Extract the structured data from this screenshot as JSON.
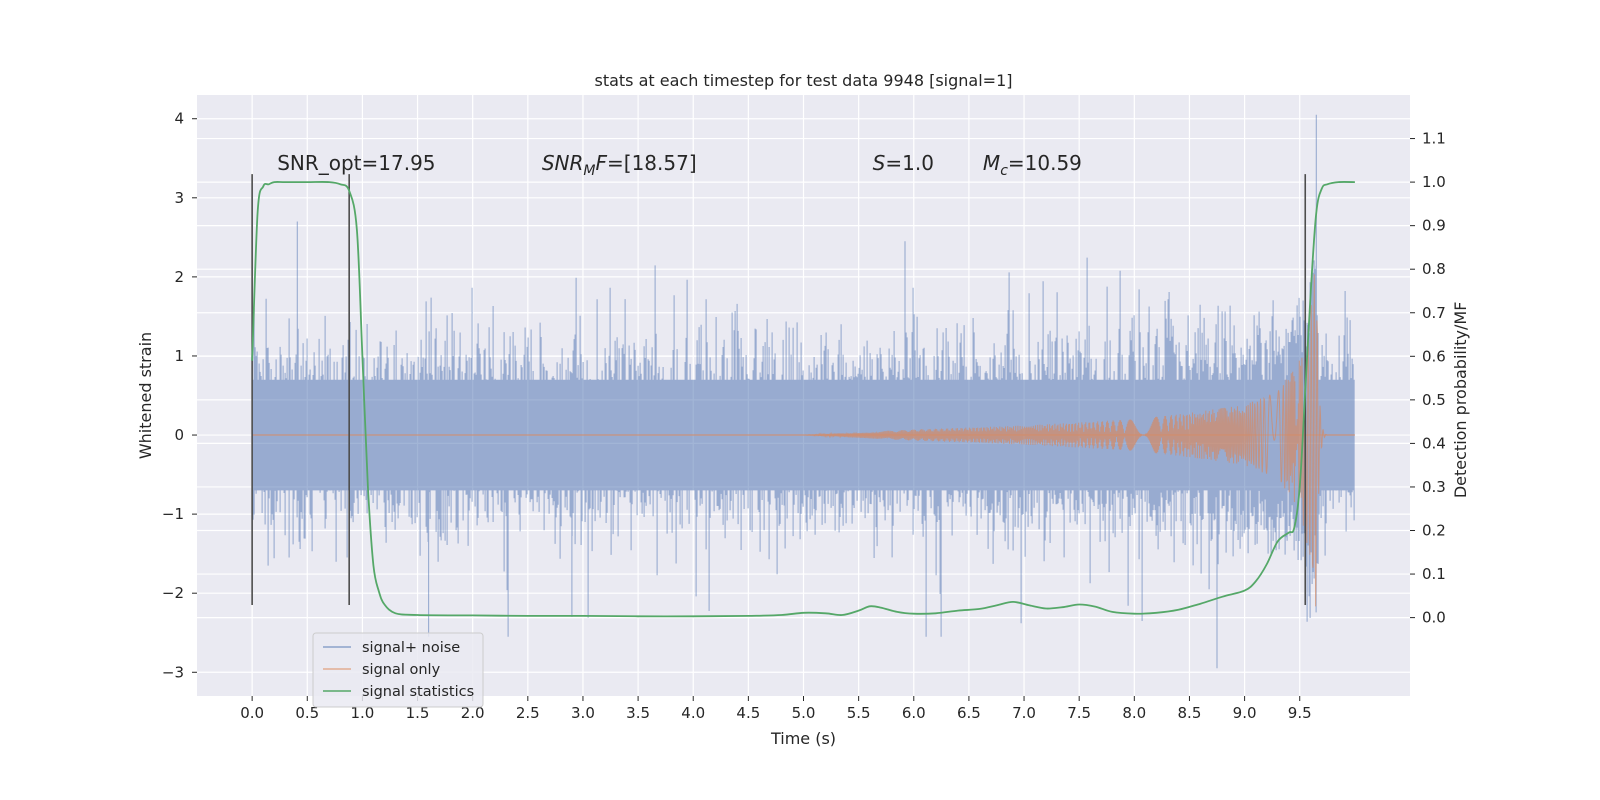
{
  "chart_data": {
    "type": "line",
    "title": "stats at each timestep for test data 9948 [signal=1]",
    "xlabel": "Time (s)",
    "ylabel": "Whitened strain",
    "y2label": "Detection probability/MF",
    "xlim": [
      -0.5,
      10.5
    ],
    "ylim": [
      -3.3,
      4.3
    ],
    "y2lim": [
      -0.18,
      1.2
    ],
    "xticks": [
      0.0,
      0.5,
      1.0,
      1.5,
      2.0,
      2.5,
      3.0,
      3.5,
      4.0,
      4.5,
      5.0,
      5.5,
      6.0,
      6.5,
      7.0,
      7.5,
      8.0,
      8.5,
      9.0,
      9.5
    ],
    "xtick_labels": [
      "0.0",
      "0.5",
      "1.0",
      "1.5",
      "2.0",
      "2.5",
      "3.0",
      "3.5",
      "4.0",
      "4.5",
      "5.0",
      "5.5",
      "6.0",
      "6.5",
      "7.0",
      "7.5",
      "8.0",
      "8.5",
      "9.0",
      "9.5"
    ],
    "yticks": [
      -3,
      -2,
      -1,
      0,
      1,
      2,
      3,
      4
    ],
    "ytick_labels": [
      "−3",
      "−2",
      "−1",
      "0",
      "1",
      "2",
      "3",
      "4"
    ],
    "y2ticks": [
      0.0,
      0.1,
      0.2,
      0.3,
      0.4,
      0.5,
      0.6,
      0.7,
      0.8,
      0.9,
      1.0,
      1.1
    ],
    "y2tick_labels": [
      "0.0",
      "0.1",
      "0.2",
      "0.3",
      "0.4",
      "0.5",
      "0.6",
      "0.7",
      "0.8",
      "0.9",
      "1.0",
      "1.1"
    ],
    "grid": true,
    "legend_position": "lower-left",
    "annotations": [
      {
        "text": "SNR_opt=17.95",
        "x": 0.2,
        "y": 3.35
      },
      {
        "text": "SNR_MF=[18.57]",
        "x": 2.6,
        "y": 3.35
      },
      {
        "text": "S=1.0",
        "x": 5.6,
        "y": 3.35
      },
      {
        "text": "M_c=10.59",
        "x": 6.6,
        "y": 3.35
      }
    ],
    "vertical_markers": [
      {
        "x": 0.0,
        "y_from": -2.15,
        "y_to": 3.3
      },
      {
        "x": 0.88,
        "y_from": -2.15,
        "y_to": 3.3
      },
      {
        "x": 9.55,
        "y_from": -2.15,
        "y_to": 3.3
      }
    ],
    "series": [
      {
        "name": "signal+ noise",
        "color": "#4c72b0",
        "kind": "noisy_strain",
        "x_range": [
          0.0,
          10.0
        ],
        "typical_envelope": 1.2,
        "peak_max": 4.05,
        "peak_min": -2.95
      },
      {
        "name": "signal only",
        "color": "#dd8452",
        "kind": "chirp",
        "x_range": [
          0.0,
          10.0
        ],
        "merger_time": 9.65,
        "amplitude_at_x": [
          [
            5.0,
            0.0
          ],
          [
            6.0,
            0.07
          ],
          [
            7.0,
            0.12
          ],
          [
            8.0,
            0.2
          ],
          [
            8.5,
            0.28
          ],
          [
            9.0,
            0.38
          ],
          [
            9.3,
            0.55
          ],
          [
            9.5,
            0.95
          ],
          [
            9.6,
            1.6
          ],
          [
            9.65,
            2.3
          ]
        ],
        "ringdown_end": 9.75
      },
      {
        "name": "signal statistics",
        "color": "#55a868",
        "axis": "y2",
        "x": [
          0.0,
          0.05,
          0.1,
          0.15,
          0.2,
          0.3,
          0.5,
          0.7,
          0.8,
          0.88,
          0.95,
          1.0,
          1.05,
          1.1,
          1.15,
          1.2,
          1.3,
          1.5,
          2.0,
          2.5,
          3.0,
          3.5,
          4.0,
          4.5,
          4.8,
          5.0,
          5.2,
          5.35,
          5.5,
          5.6,
          5.7,
          5.85,
          6.0,
          6.2,
          6.4,
          6.6,
          6.75,
          6.9,
          7.05,
          7.2,
          7.35,
          7.5,
          7.65,
          7.8,
          8.0,
          8.2,
          8.4,
          8.6,
          8.8,
          9.0,
          9.1,
          9.2,
          9.3,
          9.4,
          9.45,
          9.5,
          9.55,
          9.6,
          9.65,
          9.7,
          9.75,
          9.85,
          10.0
        ],
        "y": [
          0.59,
          0.93,
          0.99,
          0.995,
          1.0,
          1.0,
          1.0,
          1.0,
          0.995,
          0.98,
          0.89,
          0.6,
          0.3,
          0.12,
          0.06,
          0.03,
          0.01,
          0.006,
          0.005,
          0.004,
          0.004,
          0.003,
          0.003,
          0.004,
          0.006,
          0.011,
          0.01,
          0.006,
          0.016,
          0.026,
          0.023,
          0.013,
          0.009,
          0.01,
          0.016,
          0.02,
          0.028,
          0.036,
          0.028,
          0.021,
          0.024,
          0.03,
          0.025,
          0.013,
          0.009,
          0.011,
          0.018,
          0.032,
          0.048,
          0.062,
          0.083,
          0.122,
          0.175,
          0.195,
          0.206,
          0.3,
          0.52,
          0.75,
          0.93,
          0.985,
          0.995,
          1.0,
          1.0
        ]
      }
    ]
  }
}
